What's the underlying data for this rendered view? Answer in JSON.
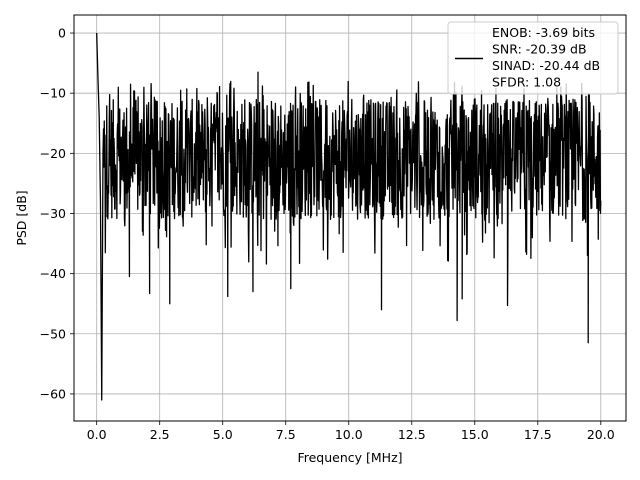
{
  "chart_data": {
    "type": "line",
    "title": "",
    "xlabel": "Frequency [MHz]",
    "ylabel": "PSD [dB]",
    "xlim": [
      -0.9,
      21.0
    ],
    "ylim": [
      -64.5,
      3.0
    ],
    "x_ticks": [
      0.0,
      2.5,
      5.0,
      7.5,
      10.0,
      12.5,
      15.0,
      17.5,
      20.0
    ],
    "x_tick_labels": [
      "0.0",
      "2.5",
      "5.0",
      "7.5",
      "10.0",
      "12.5",
      "15.0",
      "17.5",
      "20.0"
    ],
    "y_ticks": [
      0,
      -10,
      -20,
      -30,
      -40,
      -50,
      -60
    ],
    "y_tick_labels": [
      "0",
      "−10",
      "−20",
      "−30",
      "−40",
      "−50",
      "−60"
    ],
    "grid": true,
    "legend_position": "top-right",
    "series": [
      {
        "color": "#000000",
        "x_range": [
          0.0,
          20.0
        ],
        "typical_band_db": [
          -31,
          -11
        ],
        "upper_envelope_db": -8,
        "max_db": 0,
        "min_db": -61,
        "notable_points": [
          {
            "x": 0.0,
            "y": 0.0
          },
          {
            "x": 0.05,
            "y": -7.5
          },
          {
            "x": 0.2,
            "y": -61.0
          },
          {
            "x": 1.3,
            "y": -40.5
          },
          {
            "x": 2.1,
            "y": -43.3
          },
          {
            "x": 2.9,
            "y": -45.0
          },
          {
            "x": 5.2,
            "y": -43.8
          },
          {
            "x": 6.2,
            "y": -43.0
          },
          {
            "x": 6.4,
            "y": -6.5
          },
          {
            "x": 7.7,
            "y": -42.5
          },
          {
            "x": 11.3,
            "y": -46.0
          },
          {
            "x": 14.3,
            "y": -47.8
          },
          {
            "x": 14.5,
            "y": -44.2
          },
          {
            "x": 16.3,
            "y": -45.3
          },
          {
            "x": 19.5,
            "y": -51.5
          }
        ]
      }
    ],
    "legend_lines": [
      "ENOB: -3.69 bits",
      "SNR: -20.39 dB",
      "SINAD: -20.44 dB",
      "SFDR: 1.08"
    ]
  },
  "colors": {
    "line": "#000000",
    "grid": "#b0b0b0",
    "axes": "#000000",
    "legend_border": "#cccccc"
  }
}
